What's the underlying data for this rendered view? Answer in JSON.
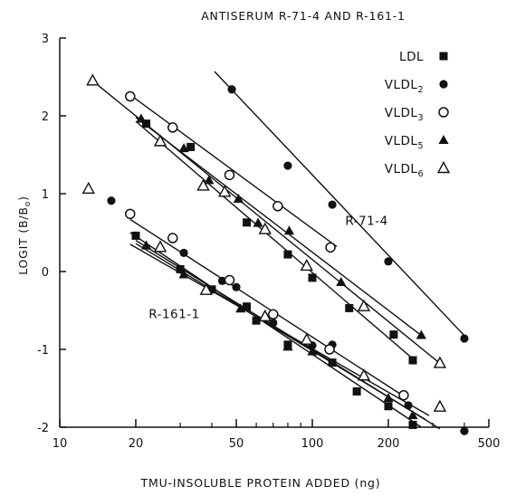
{
  "chart_data": {
    "type": "scatter",
    "title": "ANTISERUM R-71-4 AND R-161-1",
    "xlabel": "TMU-INSOLUBLE PROTEIN ADDED (ng)",
    "ylabel": "LOGIT (B/B",
    "ylabel_sub": "o",
    "ylabel_close": ")",
    "x_scale": "log",
    "xlim": [
      10,
      500
    ],
    "ylim": [
      -2,
      3
    ],
    "x_ticks": [
      10,
      20,
      50,
      100,
      200,
      500
    ],
    "x_tick_labels": [
      "10",
      "20",
      "50",
      "100",
      "200",
      "500"
    ],
    "y_ticks": [
      -2,
      -1,
      0,
      1,
      2,
      3
    ],
    "y_tick_labels": [
      "-2",
      "-1",
      "0",
      "1",
      "2",
      "3"
    ],
    "grid": false,
    "legend_position": "top-right",
    "legend": [
      {
        "label": "LDL",
        "sub": "",
        "marker": "square-filled"
      },
      {
        "label": "VLDL",
        "sub": "2",
        "marker": "circle-filled"
      },
      {
        "label": "VLDL",
        "sub": "3",
        "marker": "circle-open"
      },
      {
        "label": "VLDL",
        "sub": "5",
        "marker": "triangle-filled"
      },
      {
        "label": "VLDL",
        "sub": "6",
        "marker": "triangle-open"
      }
    ],
    "annotations": [
      {
        "text": "R-71-4",
        "x": 135,
        "y": 0.6
      },
      {
        "text": "R-161-1",
        "x": 22.5,
        "y": -0.6
      }
    ],
    "series": [
      {
        "antiserum": "R-71-4",
        "marker": "square-filled",
        "points": [
          [
            22,
            1.9
          ],
          [
            33,
            1.6
          ],
          [
            55,
            0.63
          ],
          [
            80,
            0.22
          ],
          [
            100,
            -0.08
          ],
          [
            140,
            -0.47
          ],
          [
            210,
            -0.81
          ],
          [
            250,
            -1.14
          ]
        ]
      },
      {
        "antiserum": "R-71-4",
        "marker": "circle-filled",
        "points": [
          [
            48,
            2.34
          ],
          [
            80,
            1.36
          ],
          [
            120,
            0.86
          ],
          [
            200,
            0.13
          ],
          [
            400,
            -0.86
          ]
        ]
      },
      {
        "antiserum": "R-71-4",
        "marker": "circle-open",
        "points": [
          [
            19,
            2.25
          ],
          [
            28,
            1.85
          ],
          [
            47,
            1.24
          ],
          [
            73,
            0.84
          ],
          [
            118,
            0.31
          ]
        ]
      },
      {
        "antiserum": "R-71-4",
        "marker": "triangle-filled",
        "points": [
          [
            21,
            1.96
          ],
          [
            31,
            1.58
          ],
          [
            39,
            1.17
          ],
          [
            51,
            0.93
          ],
          [
            61,
            0.62
          ],
          [
            81,
            0.52
          ],
          [
            130,
            -0.14
          ],
          [
            270,
            -0.82
          ]
        ]
      },
      {
        "antiserum": "R-71-4",
        "marker": "triangle-open",
        "points": [
          [
            13.5,
            2.45
          ],
          [
            25,
            1.67
          ],
          [
            37,
            1.1
          ],
          [
            45,
            1.02
          ],
          [
            65,
            0.54
          ],
          [
            95,
            0.07
          ],
          [
            160,
            -0.45
          ],
          [
            320,
            -1.18
          ]
        ]
      },
      {
        "antiserum": "R-161-1",
        "marker": "square-filled",
        "points": [
          [
            20,
            0.46
          ],
          [
            30,
            0.03
          ],
          [
            40,
            -0.23
          ],
          [
            55,
            -0.45
          ],
          [
            60,
            -0.63
          ],
          [
            80,
            -0.94
          ],
          [
            120,
            -1.17
          ],
          [
            150,
            -1.54
          ],
          [
            200,
            -1.73
          ],
          [
            250,
            -1.97
          ]
        ]
      },
      {
        "antiserum": "R-161-1",
        "marker": "circle-filled",
        "points": [
          [
            16,
            0.91
          ],
          [
            31,
            0.24
          ],
          [
            44,
            -0.12
          ],
          [
            50,
            -0.2
          ],
          [
            70,
            -0.66
          ],
          [
            100,
            -0.95
          ],
          [
            120,
            -0.94
          ],
          [
            240,
            -1.72
          ],
          [
            400,
            -2.05
          ]
        ]
      },
      {
        "antiserum": "R-161-1",
        "marker": "circle-open",
        "points": [
          [
            19,
            0.74
          ],
          [
            28,
            0.43
          ],
          [
            47,
            -0.11
          ],
          [
            70,
            -0.55
          ],
          [
            117,
            -1.0
          ],
          [
            230,
            -1.59
          ]
        ]
      },
      {
        "antiserum": "R-161-1",
        "marker": "triangle-filled",
        "points": [
          [
            22,
            0.33
          ],
          [
            31,
            -0.04
          ],
          [
            52,
            -0.48
          ],
          [
            80,
            -0.97
          ],
          [
            100,
            -1.03
          ],
          [
            200,
            -1.63
          ],
          [
            250,
            -1.85
          ]
        ]
      },
      {
        "antiserum": "R-161-1",
        "marker": "triangle-open",
        "points": [
          [
            13,
            1.06
          ],
          [
            25,
            0.31
          ],
          [
            38,
            -0.24
          ],
          [
            65,
            -0.58
          ],
          [
            95,
            -0.88
          ],
          [
            160,
            -1.34
          ],
          [
            320,
            -1.74
          ]
        ]
      }
    ],
    "fit_lines": [
      {
        "antiserum": "R-71-4",
        "marker": "triangle-open",
        "x": [
          13.5,
          320
        ],
        "y": [
          2.45,
          -1.18
        ]
      },
      {
        "antiserum": "R-71-4",
        "marker": "circle-open",
        "x": [
          19,
          125
        ],
        "y": [
          2.27,
          0.32
        ]
      },
      {
        "antiserum": "R-71-4",
        "marker": "triangle-filled",
        "x": [
          20,
          270
        ],
        "y": [
          1.98,
          -0.82
        ]
      },
      {
        "antiserum": "R-71-4",
        "marker": "square-filled",
        "x": [
          20,
          250
        ],
        "y": [
          1.93,
          -1.12
        ]
      },
      {
        "antiserum": "R-71-4",
        "marker": "circle-filled",
        "x": [
          41,
          410
        ],
        "y": [
          2.57,
          -0.86
        ]
      },
      {
        "antiserum": "R-161-1",
        "marker": "square-filled",
        "x": [
          19,
          270
        ],
        "y": [
          0.5,
          -2.0
        ]
      },
      {
        "antiserum": "R-161-1",
        "marker": "circle-filled",
        "x": [
          19,
          290
        ],
        "y": [
          0.35,
          -1.85
        ]
      },
      {
        "antiserum": "R-161-1",
        "marker": "circle-open",
        "x": [
          19,
          230
        ],
        "y": [
          0.67,
          -1.6
        ]
      },
      {
        "antiserum": "R-161-1",
        "marker": "triangle-filled",
        "x": [
          20,
          280
        ],
        "y": [
          0.36,
          -1.9
        ]
      },
      {
        "antiserum": "R-161-1",
        "marker": "triangle-open",
        "x": [
          20,
          320
        ],
        "y": [
          0.4,
          -2.02
        ]
      }
    ]
  }
}
